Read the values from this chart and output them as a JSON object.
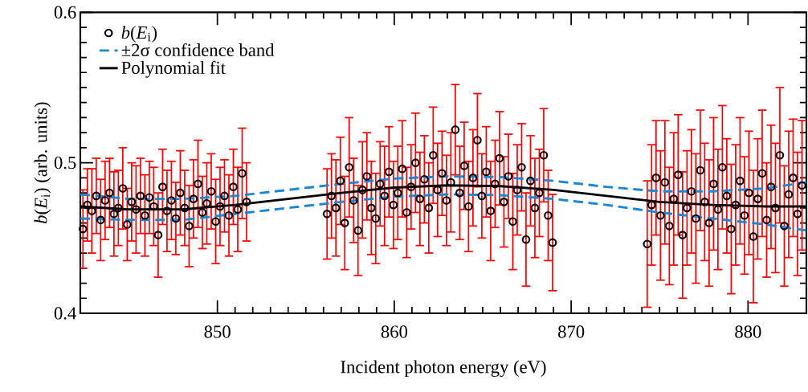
{
  "chart_data": {
    "type": "scatter",
    "xlabel": "Incident photon energy (eV)",
    "ylabel": "*b*(*E*$_{i}$) (arb. units)",
    "xlim": [
      842.25,
      883.3
    ],
    "ylim": [
      0.4,
      0.6
    ],
    "xticks": [
      850,
      860,
      870,
      880
    ],
    "yticks": [
      0.4,
      0.5,
      0.6
    ],
    "grid": false,
    "legend": "top left",
    "series": [
      {
        "name": "*b*(*E*$_{i}$)",
        "marker": "circle",
        "color": "#000000",
        "x": [
          842.4,
          842.65,
          842.9,
          843.15,
          843.4,
          843.65,
          843.9,
          844.15,
          844.4,
          844.65,
          844.9,
          845.15,
          845.4,
          845.65,
          845.9,
          846.15,
          846.4,
          846.65,
          846.9,
          847.15,
          847.4,
          847.65,
          847.9,
          848.15,
          848.4,
          848.65,
          848.9,
          849.15,
          849.4,
          849.65,
          849.9,
          850.15,
          850.4,
          850.65,
          850.9,
          851.15,
          851.4,
          851.65,
          856.2,
          856.45,
          856.7,
          856.95,
          857.2,
          857.45,
          857.7,
          857.95,
          858.2,
          858.45,
          858.7,
          858.95,
          859.2,
          859.45,
          859.7,
          859.95,
          860.2,
          860.45,
          860.7,
          860.95,
          861.2,
          861.45,
          861.7,
          861.95,
          862.2,
          862.45,
          862.7,
          862.95,
          863.2,
          863.45,
          863.7,
          863.95,
          864.2,
          864.45,
          864.7,
          864.95,
          865.2,
          865.45,
          865.7,
          865.95,
          866.2,
          866.45,
          866.7,
          866.95,
          867.2,
          867.45,
          867.7,
          867.95,
          868.2,
          868.45,
          868.7,
          868.95,
          874.3,
          874.55,
          874.8,
          875.05,
          875.3,
          875.55,
          875.8,
          876.05,
          876.3,
          876.55,
          876.8,
          877.05,
          877.3,
          877.55,
          877.8,
          878.05,
          878.3,
          878.55,
          878.8,
          879.05,
          879.3,
          879.55,
          879.8,
          880.05,
          880.3,
          880.55,
          880.8,
          881.05,
          881.3,
          881.55,
          881.8,
          882.05,
          882.3,
          882.55,
          882.8,
          883.05
        ],
        "values": [
          0.456,
          0.472,
          0.468,
          0.478,
          0.462,
          0.475,
          0.48,
          0.466,
          0.47,
          0.483,
          0.459,
          0.474,
          0.469,
          0.478,
          0.465,
          0.477,
          0.471,
          0.452,
          0.484,
          0.468,
          0.475,
          0.463,
          0.48,
          0.47,
          0.458,
          0.476,
          0.486,
          0.467,
          0.473,
          0.481,
          0.461,
          0.471,
          0.478,
          0.465,
          0.484,
          0.469,
          0.493,
          0.474,
          0.466,
          0.478,
          0.47,
          0.488,
          0.46,
          0.497,
          0.475,
          0.455,
          0.482,
          0.491,
          0.47,
          0.463,
          0.486,
          0.478,
          0.494,
          0.472,
          0.48,
          0.496,
          0.467,
          0.484,
          0.5,
          0.476,
          0.489,
          0.47,
          0.505,
          0.482,
          0.493,
          0.475,
          0.487,
          0.522,
          0.48,
          0.498,
          0.471,
          0.49,
          0.515,
          0.478,
          0.494,
          0.468,
          0.486,
          0.503,
          0.474,
          0.491,
          0.461,
          0.482,
          0.497,
          0.449,
          0.488,
          0.47,
          0.48,
          0.505,
          0.465,
          0.447,
          0.446,
          0.472,
          0.49,
          0.465,
          0.487,
          0.458,
          0.476,
          0.492,
          0.452,
          0.47,
          0.481,
          0.463,
          0.495,
          0.474,
          0.46,
          0.486,
          0.469,
          0.497,
          0.478,
          0.456,
          0.472,
          0.488,
          0.465,
          0.48,
          0.451,
          0.476,
          0.493,
          0.462,
          0.484,
          0.47,
          0.505,
          0.458,
          0.479,
          0.49,
          0.466,
          0.485
        ],
        "errors": [
          0.026,
          0.024,
          0.028,
          0.025,
          0.027,
          0.026,
          0.023,
          0.028,
          0.025,
          0.027,
          0.024,
          0.026,
          0.029,
          0.025,
          0.027,
          0.024,
          0.026,
          0.028,
          0.025,
          0.027,
          0.026,
          0.024,
          0.028,
          0.025,
          0.027,
          0.026,
          0.029,
          0.024,
          0.027,
          0.025,
          0.028,
          0.026,
          0.024,
          0.027,
          0.025,
          0.028,
          0.03,
          0.026,
          0.03,
          0.028,
          0.032,
          0.029,
          0.031,
          0.033,
          0.028,
          0.03,
          0.032,
          0.029,
          0.031,
          0.03,
          0.028,
          0.033,
          0.03,
          0.029,
          0.031,
          0.032,
          0.03,
          0.028,
          0.033,
          0.031,
          0.029,
          0.03,
          0.032,
          0.031,
          0.028,
          0.03,
          0.033,
          0.03,
          0.031,
          0.029,
          0.03,
          0.032,
          0.031,
          0.028,
          0.03,
          0.033,
          0.029,
          0.031,
          0.03,
          0.028,
          0.032,
          0.03,
          0.029,
          0.031,
          0.03,
          0.033,
          0.029,
          0.031,
          0.03,
          0.032,
          0.042,
          0.04,
          0.038,
          0.043,
          0.041,
          0.039,
          0.044,
          0.04,
          0.042,
          0.038,
          0.041,
          0.043,
          0.04,
          0.039,
          0.042,
          0.044,
          0.04,
          0.041,
          0.038,
          0.043,
          0.04,
          0.042,
          0.039,
          0.041,
          0.044,
          0.04,
          0.042,
          0.038,
          0.041,
          0.043,
          0.045,
          0.04,
          0.042,
          0.039,
          0.041,
          0.043
        ]
      },
      {
        "name": "±2σ confidence band",
        "type": "line",
        "line_style": "dashed",
        "color": "#1b87d2",
        "x": [
          842.25,
          845,
          848,
          851,
          854,
          857,
          860,
          863,
          866,
          869,
          872,
          875,
          878,
          881,
          883.3
        ],
        "values": [
          0.479,
          0.476,
          0.476,
          0.478,
          0.482,
          0.486,
          0.4895,
          0.491,
          0.4905,
          0.488,
          0.484,
          0.481,
          0.481,
          0.483,
          0.487
        ]
      },
      {
        "type": "line",
        "line_style": "dashed",
        "color": "#1b87d2",
        "x": [
          842.25,
          845,
          848,
          851,
          854,
          857,
          860,
          863,
          866,
          869,
          872,
          875,
          878,
          881,
          883.3
        ],
        "values": [
          0.463,
          0.462,
          0.462,
          0.466,
          0.47,
          0.474,
          0.4775,
          0.479,
          0.4785,
          0.476,
          0.472,
          0.467,
          0.463,
          0.459,
          0.455
        ]
      },
      {
        "name": "Polynomial fit",
        "type": "line",
        "line_style": "solid",
        "color": "#000000",
        "x": [
          842.25,
          845,
          848,
          851,
          854,
          857,
          860,
          863,
          866,
          869,
          872,
          875,
          878,
          881,
          883.3
        ],
        "values": [
          0.471,
          0.469,
          0.469,
          0.472,
          0.476,
          0.48,
          0.4835,
          0.485,
          0.4845,
          0.482,
          0.478,
          0.474,
          0.472,
          0.471,
          0.471
        ]
      }
    ]
  }
}
